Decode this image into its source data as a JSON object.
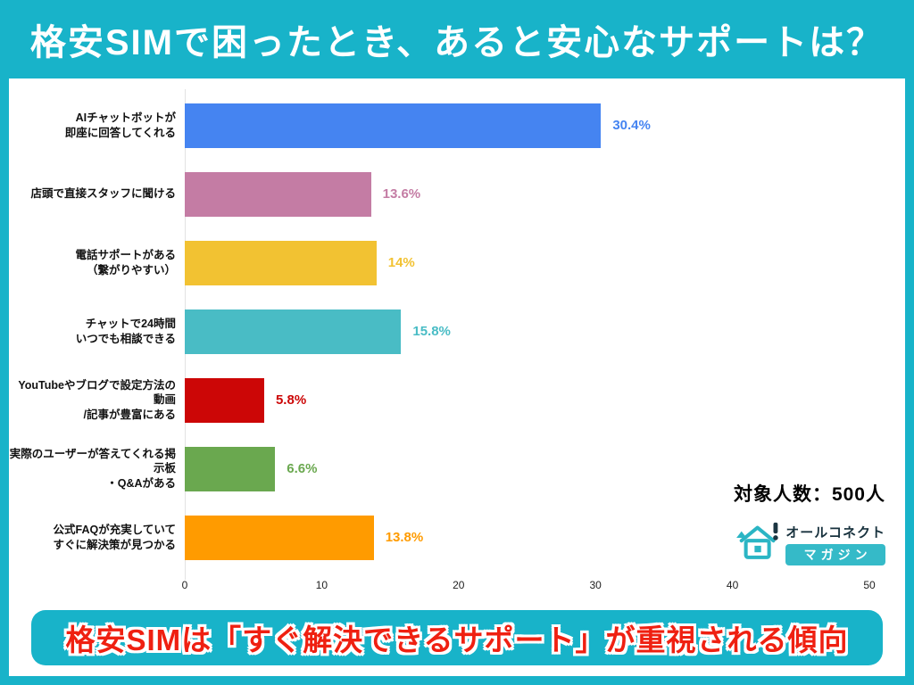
{
  "header": {
    "title": "格安SIMで困ったとき、あると安心なサポートは？"
  },
  "chart_data": {
    "type": "bar",
    "orientation": "horizontal",
    "title": "格安SIMで困ったとき、あると安心なサポートは？",
    "categories": [
      "AIチャットボットが\n即座に回答してくれる",
      "店頭で直接スタッフに聞ける",
      "電話サポートがある\n（繋がりやすい）",
      "チャットで24時間\nいつでも相談できる",
      "YouTubeやブログで設定方法の動画\n/記事が豊富にある",
      "実際のユーザーが答えてくれる掲示板\n・Q&Aがある",
      "公式FAQが充実していて\nすぐに解決策が見つかる"
    ],
    "values": [
      30.4,
      13.6,
      14,
      15.8,
      5.8,
      6.6,
      13.8
    ],
    "value_labels": [
      "30.4%",
      "13.6%",
      "14%",
      "15.8%",
      "5.8%",
      "6.6%",
      "13.8%"
    ],
    "bar_colors": [
      "#4584f1",
      "#c47ca4",
      "#f2c232",
      "#49bcc5",
      "#cc0606",
      "#6aa84f",
      "#ff9b00"
    ],
    "xlabel": "",
    "ylabel": "",
    "xlim": [
      0,
      50
    ],
    "x_ticks": [
      0,
      10,
      20,
      30,
      40,
      50
    ],
    "grid": false,
    "legend": "none",
    "annotation": "対象人数：500人"
  },
  "sample": {
    "size_label": "対象人数：500人"
  },
  "logo": {
    "icon": "house-exclamation-icon",
    "brand_top": "オールコネクト",
    "brand_bottom": "マガジン"
  },
  "footer": {
    "banner_text": "格安SIMは「すぐ解決できるサポート」が重視される傾向"
  },
  "colors": {
    "background_teal": "#18b3c9",
    "panel_white": "#ffffff",
    "title_white": "#ffffff",
    "footer_text_red": "#ef2011",
    "logo_teal": "#2bb5c4",
    "category_text": "#111111",
    "axis_text": "#222222"
  }
}
